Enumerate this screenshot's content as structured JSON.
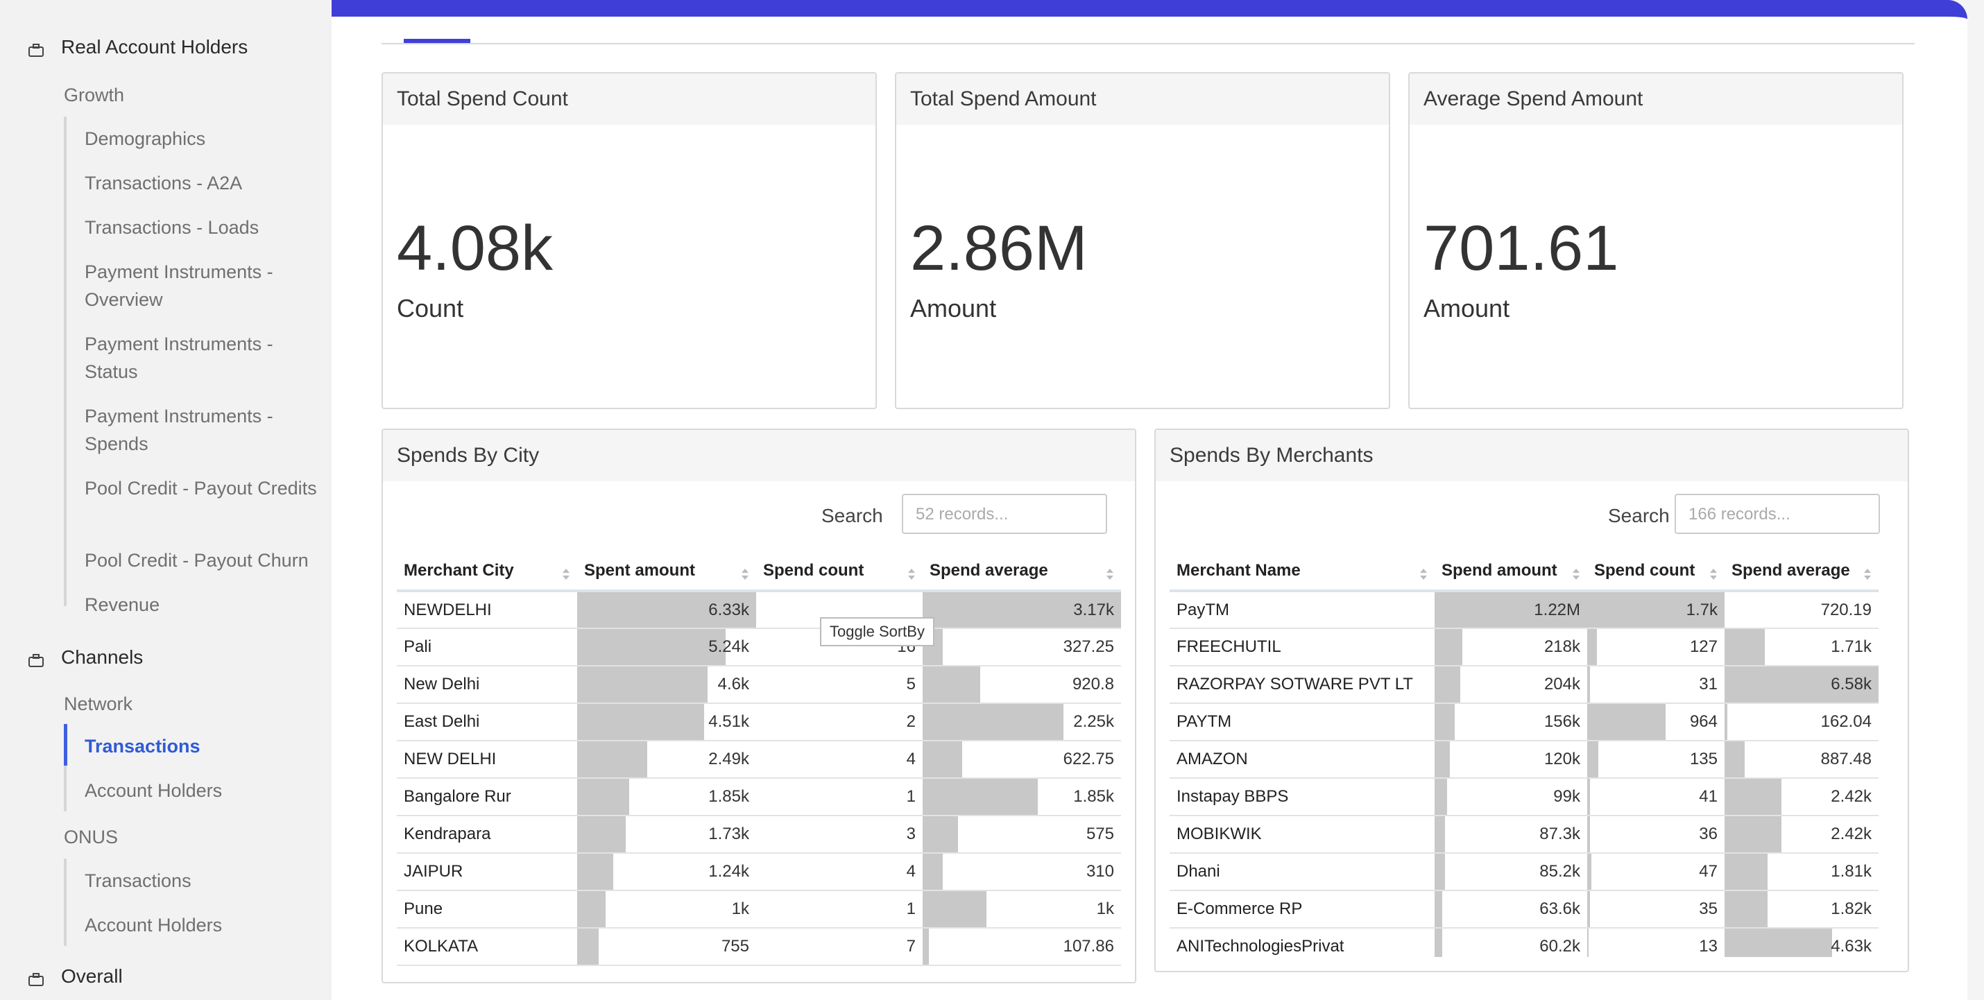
{
  "sidebar": {
    "sections": [
      {
        "label": "Real Account Holders",
        "icon": "briefcase-icon"
      },
      {
        "label": "Channels",
        "icon": "briefcase-icon"
      },
      {
        "label": "Overall",
        "icon": "briefcase-icon"
      }
    ],
    "groups": {
      "growth": "Growth",
      "network": "Network",
      "onus": "ONUS"
    },
    "growth_items": [
      "Demographics",
      "Transactions - A2A",
      "Transactions - Loads",
      "Payment Instruments - Overview",
      "Payment Instruments - Status",
      "Payment Instruments - Spends",
      "Pool Credit - Payout Credits",
      "Pool Credit - Payout Churn",
      "Revenue"
    ],
    "network_items": [
      "Transactions",
      "Account Holders"
    ],
    "onus_items": [
      "Transactions",
      "Account Holders"
    ],
    "active_item": "Transactions"
  },
  "kpis": [
    {
      "title": "Total Spend Count",
      "value": "4.08k",
      "label": "Count"
    },
    {
      "title": "Total Spend Amount",
      "value": "2.86M",
      "label": "Amount"
    },
    {
      "title": "Average Spend Amount",
      "value": "701.61",
      "label": "Amount"
    }
  ],
  "city_table": {
    "title": "Spends By City",
    "search_label": "Search",
    "search_placeholder": "52 records...",
    "columns": [
      "Merchant City",
      "Spent amount",
      "Spend count",
      "Spend average"
    ],
    "rows": [
      {
        "city": "NEWDELHI",
        "amount": "6.33k",
        "count": "",
        "avg": "3.17k",
        "fa": 1.0,
        "fc": 0.0,
        "fv": 1.0
      },
      {
        "city": "Pali",
        "amount": "5.24k",
        "count": "16",
        "avg": "327.25",
        "fa": 0.83,
        "fc": 0.0,
        "fv": 0.1
      },
      {
        "city": "New Delhi",
        "amount": "4.6k",
        "count": "5",
        "avg": "920.8",
        "fa": 0.73,
        "fc": 0.0,
        "fv": 0.29
      },
      {
        "city": "East Delhi",
        "amount": "4.51k",
        "count": "2",
        "avg": "2.25k",
        "fa": 0.71,
        "fc": 0.0,
        "fv": 0.71
      },
      {
        "city": "NEW DELHI",
        "amount": "2.49k",
        "count": "4",
        "avg": "622.75",
        "fa": 0.39,
        "fc": 0.0,
        "fv": 0.2
      },
      {
        "city": "Bangalore Rur",
        "amount": "1.85k",
        "count": "1",
        "avg": "1.85k",
        "fa": 0.29,
        "fc": 0.0,
        "fv": 0.58
      },
      {
        "city": "Kendrapara",
        "amount": "1.73k",
        "count": "3",
        "avg": "575",
        "fa": 0.27,
        "fc": 0.0,
        "fv": 0.18
      },
      {
        "city": "JAIPUR",
        "amount": "1.24k",
        "count": "4",
        "avg": "310",
        "fa": 0.2,
        "fc": 0.0,
        "fv": 0.1
      },
      {
        "city": "Pune",
        "amount": "1k",
        "count": "1",
        "avg": "1k",
        "fa": 0.16,
        "fc": 0.0,
        "fv": 0.32
      },
      {
        "city": "KOLKATA",
        "amount": "755",
        "count": "7",
        "avg": "107.86",
        "fa": 0.12,
        "fc": 0.0,
        "fv": 0.03
      }
    ],
    "tooltip": "Toggle SortBy"
  },
  "merchant_table": {
    "title": "Spends By Merchants",
    "search_label": "Search",
    "search_placeholder": "166 records...",
    "columns": [
      "Merchant Name",
      "Spend amount",
      "Spend count",
      "Spend average"
    ],
    "rows": [
      {
        "name": "PayTM",
        "amount": "1.22M",
        "count": "1.7k",
        "avg": "720.19",
        "fa": 1.0,
        "fc": 1.0,
        "fv": 0.0
      },
      {
        "name": "FREECHUTIL",
        "amount": "218k",
        "count": "127",
        "avg": "1.71k",
        "fa": 0.18,
        "fc": 0.07,
        "fv": 0.26
      },
      {
        "name": "RAZORPAY SOTWARE PVT LT",
        "amount": "204k",
        "count": "31",
        "avg": "6.58k",
        "fa": 0.17,
        "fc": 0.02,
        "fv": 1.0
      },
      {
        "name": "PAYTM",
        "amount": "156k",
        "count": "964",
        "avg": "162.04",
        "fa": 0.13,
        "fc": 0.57,
        "fv": 0.02
      },
      {
        "name": "AMAZON",
        "amount": "120k",
        "count": "135",
        "avg": "887.48",
        "fa": 0.1,
        "fc": 0.08,
        "fv": 0.13
      },
      {
        "name": "Instapay BBPS",
        "amount": "99k",
        "count": "41",
        "avg": "2.42k",
        "fa": 0.08,
        "fc": 0.02,
        "fv": 0.37
      },
      {
        "name": "MOBIKWIK",
        "amount": "87.3k",
        "count": "36",
        "avg": "2.42k",
        "fa": 0.07,
        "fc": 0.02,
        "fv": 0.37
      },
      {
        "name": "Dhani",
        "amount": "85.2k",
        "count": "47",
        "avg": "1.81k",
        "fa": 0.07,
        "fc": 0.03,
        "fv": 0.28
      },
      {
        "name": "E-Commerce RP",
        "amount": "63.6k",
        "count": "35",
        "avg": "1.82k",
        "fa": 0.05,
        "fc": 0.02,
        "fv": 0.28
      },
      {
        "name": "ANITechnologiesPrivat",
        "amount": "60.2k",
        "count": "13",
        "avg": "4.63k",
        "fa": 0.05,
        "fc": 0.01,
        "fv": 0.7
      }
    ]
  },
  "colors": {
    "accent": "#3f3fd8",
    "active_link": "#2f5bd4",
    "bar": "#c8c8c8"
  }
}
